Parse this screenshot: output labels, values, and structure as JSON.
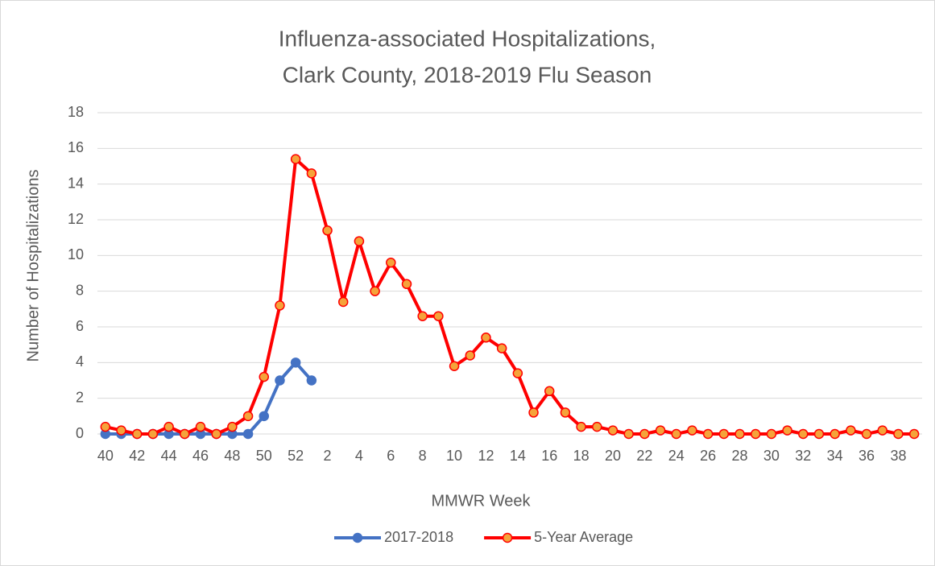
{
  "chart_data": {
    "type": "line",
    "title": [
      "Influenza-associated Hospitalizations,",
      "Clark County, 2018-2019 Flu Season"
    ],
    "x_label": "MMWR Week",
    "y_label": "Number of Hospitalizations",
    "categories": [
      "40",
      null,
      "42",
      null,
      "44",
      null,
      "46",
      null,
      "48",
      null,
      "50",
      null,
      "52",
      null,
      "2",
      null,
      "4",
      null,
      "6",
      null,
      "8",
      null,
      "10",
      null,
      "12",
      null,
      "14",
      null,
      "16",
      null,
      "18",
      null,
      "20",
      null,
      "22",
      null,
      "24",
      null,
      "26",
      null,
      "28",
      null,
      "30",
      null,
      "32",
      null,
      "34",
      null,
      "36",
      null,
      "38",
      null
    ],
    "series": [
      {
        "name": "2017-2018",
        "color": "#4472c4",
        "marker_fill": "#4472c4",
        "values": [
          0,
          0,
          0,
          0,
          0,
          0,
          0,
          0,
          0,
          0,
          1,
          3,
          4,
          3,
          null,
          null,
          null,
          null,
          null,
          null,
          null,
          null,
          null,
          null,
          null,
          null,
          null,
          null,
          null,
          null,
          null,
          null,
          null,
          null,
          null,
          null,
          null,
          null,
          null,
          null,
          null,
          null,
          null,
          null,
          null,
          null,
          null,
          null,
          null,
          null,
          null,
          null
        ]
      },
      {
        "name": "5-Year Average",
        "color": "#ff0000",
        "marker_fill": "#f5a33a",
        "values": [
          0.4,
          0.2,
          0,
          0,
          0.4,
          0,
          0.4,
          0,
          0.4,
          1.0,
          3.2,
          7.2,
          15.4,
          14.6,
          11.4,
          7.4,
          10.8,
          8.0,
          9.6,
          8.4,
          6.6,
          6.6,
          3.8,
          4.4,
          5.4,
          4.8,
          3.4,
          1.2,
          2.4,
          1.2,
          0.4,
          0.4,
          0.2,
          0,
          0,
          0.2,
          0,
          0.2,
          0,
          0,
          0,
          0,
          0,
          0.2,
          0,
          0,
          0,
          0.2,
          0,
          0.2,
          0,
          0
        ]
      }
    ],
    "ylim": [
      0,
      18
    ],
    "yticks": [
      0,
      2,
      4,
      6,
      8,
      10,
      12,
      14,
      16,
      18
    ],
    "grid": true,
    "legend": "bottom"
  }
}
